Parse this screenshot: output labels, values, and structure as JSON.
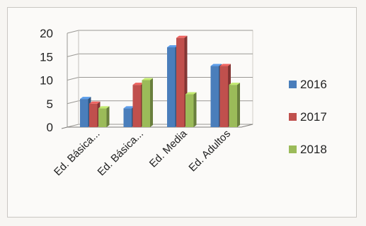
{
  "chart_data": {
    "type": "bar",
    "style": "3d-clustered-column",
    "categories": [
      "Ed. Básica...",
      "Ed. Básica...",
      "Ed. Media",
      "Ed. Adultos"
    ],
    "series": [
      {
        "name": "2016",
        "color": "#4a7ebb",
        "values": [
          6,
          4,
          17,
          13
        ]
      },
      {
        "name": "2017",
        "color": "#c0504d",
        "values": [
          5,
          9,
          19,
          13
        ]
      },
      {
        "name": "2018",
        "color": "#9bbb59",
        "values": [
          4,
          10,
          7,
          9
        ]
      }
    ],
    "yticks": [
      0,
      5,
      10,
      15,
      20
    ],
    "ylim": [
      0,
      20
    ],
    "grid": true,
    "legend_position": "right"
  }
}
